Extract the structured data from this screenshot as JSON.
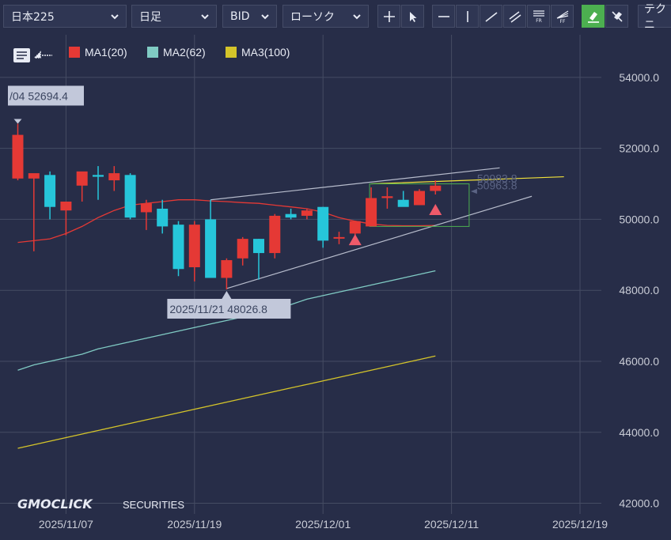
{
  "toolbar": {
    "symbol": "日本225",
    "timeframe": "日足",
    "price_type": "BID",
    "chart_style": "ローソク",
    "tech_tab": "テクニ",
    "tools": [
      "crosshair-icon",
      "pointer-icon",
      "horizontal-line-icon",
      "vertical-line-icon",
      "trend-line-icon",
      "parallel-lines-icon",
      "fibonacci-retracement-icon",
      "fibonacci-fan-icon",
      "draw-mode-icon",
      "erase-drawings-icon"
    ]
  },
  "legend": [
    {
      "label": "MA1(20)",
      "color": "#e53935"
    },
    {
      "label": "MA2(62)",
      "color": "#80cbc4"
    },
    {
      "label": "MA3(100)",
      "color": "#d4c42a"
    }
  ],
  "annotations": {
    "high_label": "/04 52694.4",
    "low_label": "2025/11/21 48026.8",
    "price_a": "50983.8",
    "price_b": "50963.8"
  },
  "watermark": {
    "brand": "GMOCLICK",
    "suffix": "SECURITIES"
  },
  "colors": {
    "background": "#272d48",
    "grid": "#454c63",
    "up": "#e53935",
    "down": "#26c6da",
    "axis_text": "#c9ccd6"
  },
  "chart_data": {
    "type": "candlestick",
    "ylim": [
      41700,
      55200
    ],
    "yticks": [
      42000,
      44000,
      46000,
      48000,
      50000,
      52000,
      54000
    ],
    "ytick_labels": [
      "42000.0",
      "44000.0",
      "46000.0",
      "48000.0",
      "50000.0",
      "52000.0",
      "54000.0"
    ],
    "xtick_labels": [
      {
        "index": 3,
        "label": "2025/11/07"
      },
      {
        "index": 11,
        "label": "2025/11/19"
      },
      {
        "index": 19,
        "label": "2025/12/01"
      },
      {
        "index": 27,
        "label": "2025/12/11"
      },
      {
        "index": 35,
        "label": "2025/12/19"
      }
    ],
    "candles": [
      {
        "o": 51150,
        "h": 52694,
        "l": 51100,
        "c": 52380
      },
      {
        "o": 51150,
        "h": 51250,
        "l": 49100,
        "c": 51300
      },
      {
        "o": 51250,
        "h": 51350,
        "l": 50000,
        "c": 50350
      },
      {
        "o": 50250,
        "h": 50500,
        "l": 49550,
        "c": 50500
      },
      {
        "o": 50950,
        "h": 51300,
        "l": 50500,
        "c": 51350
      },
      {
        "o": 51250,
        "h": 51500,
        "l": 50550,
        "c": 51200
      },
      {
        "o": 51100,
        "h": 51500,
        "l": 50800,
        "c": 51300
      },
      {
        "o": 51250,
        "h": 51300,
        "l": 50000,
        "c": 50050
      },
      {
        "o": 50200,
        "h": 50550,
        "l": 49700,
        "c": 50450
      },
      {
        "o": 50300,
        "h": 50550,
        "l": 49600,
        "c": 49800
      },
      {
        "o": 49850,
        "h": 49950,
        "l": 48400,
        "c": 48600
      },
      {
        "o": 48650,
        "h": 49950,
        "l": 48250,
        "c": 49850
      },
      {
        "o": 50000,
        "h": 50550,
        "l": 48350,
        "c": 48350
      },
      {
        "o": 48350,
        "h": 48900,
        "l": 48027,
        "c": 48850
      },
      {
        "o": 48900,
        "h": 49500,
        "l": 48700,
        "c": 49450
      },
      {
        "o": 49450,
        "h": 49450,
        "l": 48300,
        "c": 49050
      },
      {
        "o": 49050,
        "h": 50150,
        "l": 48900,
        "c": 50100
      },
      {
        "o": 50150,
        "h": 50300,
        "l": 50000,
        "c": 50050
      },
      {
        "o": 50100,
        "h": 50300,
        "l": 50000,
        "c": 50250
      },
      {
        "o": 50350,
        "h": 50350,
        "l": 49200,
        "c": 49400
      },
      {
        "o": 49500,
        "h": 49650,
        "l": 49300,
        "c": 49500
      },
      {
        "o": 49600,
        "h": 49950,
        "l": 49300,
        "c": 49950
      },
      {
        "o": 49800,
        "h": 50900,
        "l": 49800,
        "c": 50600
      },
      {
        "o": 50600,
        "h": 50900,
        "l": 50300,
        "c": 50650
      },
      {
        "o": 50550,
        "h": 50800,
        "l": 50450,
        "c": 50350
      },
      {
        "o": 50400,
        "h": 50850,
        "l": 50400,
        "c": 50800
      },
      {
        "o": 50800,
        "h": 51100,
        "l": 50700,
        "c": 50950
      }
    ],
    "ma1": [
      49350,
      49400,
      49450,
      49600,
      49800,
      50050,
      50250,
      50400,
      50450,
      50500,
      50550,
      50550,
      50520,
      50500,
      50470,
      50450,
      50400,
      50350,
      50300,
      50200,
      50050,
      49950,
      49870,
      49830,
      49820,
      49820,
      49830
    ],
    "ma2": [
      45750,
      45900,
      46000,
      46100,
      46200,
      46350,
      46450,
      46550,
      46650,
      46750,
      46850,
      46950,
      47050,
      47150,
      47250,
      47350,
      47500,
      47600,
      47750,
      47850,
      47950,
      48050,
      48150,
      48250,
      48350,
      48450,
      48550
    ],
    "ma3": [
      43550,
      43650,
      43750,
      43850,
      43950,
      44050,
      44150,
      44250,
      44350,
      44450,
      44550,
      44650,
      44750,
      44850,
      44950,
      45050,
      45150,
      45250,
      45350,
      45450,
      45550,
      45650,
      45750,
      45850,
      45950,
      46050,
      46150
    ],
    "channel_upper": [
      {
        "i": 12,
        "v": 50550
      },
      {
        "i": 30,
        "v": 51450
      }
    ],
    "channel_lower": [
      {
        "i": 13,
        "v": 48050
      },
      {
        "i": 32,
        "v": 50650
      }
    ],
    "price_line": {
      "i0": 22,
      "i1": 34,
      "v0": 51000,
      "v1": 51200
    },
    "signal_box": {
      "i0": 22,
      "i1": 28,
      "v0": 51000,
      "v1": 49800
    },
    "signals": [
      {
        "i": 21,
        "v": 49450
      },
      {
        "i": 26,
        "v": 50300
      }
    ]
  }
}
